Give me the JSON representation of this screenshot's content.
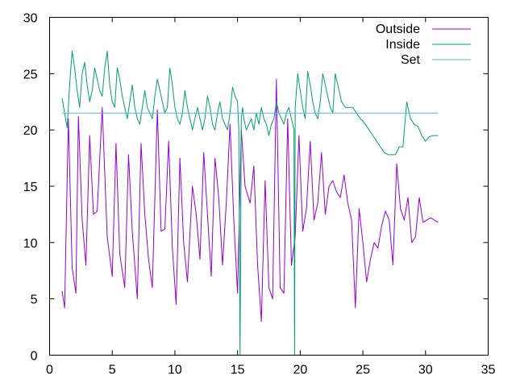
{
  "chart_data": {
    "type": "line",
    "title": "",
    "xlabel": "",
    "ylabel": "",
    "xlim": [
      0,
      35
    ],
    "ylim": [
      0,
      30
    ],
    "xticks": [
      0,
      5,
      10,
      15,
      20,
      25,
      30,
      35
    ],
    "yticks": [
      0,
      5,
      10,
      15,
      20,
      25,
      30
    ],
    "grid": false,
    "legend_position": "top-right",
    "series": [
      {
        "name": "Outside",
        "color": "#9400d3",
        "x": [
          1.0,
          1.2,
          1.5,
          1.8,
          2.1,
          2.3,
          2.6,
          2.9,
          3.2,
          3.5,
          3.8,
          4.2,
          4.6,
          5.0,
          5.3,
          5.6,
          6.0,
          6.3,
          6.6,
          7.0,
          7.3,
          7.6,
          7.9,
          8.2,
          8.6,
          8.9,
          9.2,
          9.5,
          9.8,
          10.1,
          10.4,
          10.7,
          11.0,
          11.4,
          11.7,
          12.0,
          12.3,
          12.6,
          12.9,
          13.2,
          13.5,
          13.8,
          14.1,
          14.4,
          14.7,
          15.0,
          15.3,
          15.6,
          16.0,
          16.3,
          16.6,
          16.9,
          17.2,
          17.5,
          17.8,
          18.1,
          18.4,
          18.7,
          19.0,
          19.3,
          19.6,
          19.9,
          20.2,
          20.5,
          20.8,
          21.1,
          21.4,
          21.7,
          22.0,
          22.3,
          22.6,
          22.9,
          23.2,
          23.5,
          23.8,
          24.1,
          24.4,
          24.7,
          25.0,
          25.3,
          25.6,
          25.9,
          26.2,
          26.5,
          26.8,
          27.1,
          27.4,
          27.7,
          28.0,
          28.3,
          28.6,
          28.9,
          29.2,
          29.5,
          29.8,
          30.1,
          30.4,
          30.7,
          31.0
        ],
        "y": [
          5.7,
          4.2,
          21.0,
          7.8,
          5.5,
          21.2,
          12.0,
          8.0,
          19.5,
          12.5,
          12.8,
          22.0,
          10.5,
          7.0,
          18.8,
          9.0,
          6.0,
          17.8,
          11.0,
          5.0,
          18.8,
          12.5,
          8.5,
          6.0,
          21.8,
          11.0,
          11.2,
          19.0,
          9.5,
          4.5,
          17.5,
          10.0,
          6.5,
          15.0,
          12.5,
          8.5,
          18.0,
          12.5,
          7.0,
          17.5,
          14.0,
          8.0,
          13.5,
          20.5,
          12.0,
          5.5,
          20.0,
          15.0,
          13.5,
          16.8,
          8.0,
          3.0,
          15.5,
          6.0,
          5.0,
          24.5,
          6.0,
          5.5,
          21.0,
          8.0,
          10.5,
          19.5,
          11.0,
          13.0,
          19.0,
          12.0,
          13.5,
          18.0,
          12.5,
          15.0,
          15.5,
          14.5,
          14.0,
          16.0,
          13.5,
          12.0,
          4.2,
          13.0,
          10.0,
          6.5,
          8.5,
          10.0,
          9.5,
          11.5,
          12.8,
          12.0,
          8.0,
          17.0,
          13.0,
          12.0,
          14.0,
          10.0,
          10.5,
          14.0,
          11.8,
          12.0,
          12.2,
          12.0,
          11.8
        ]
      },
      {
        "name": "Inside",
        "color": "#009e73",
        "x": [
          1.0,
          1.2,
          1.4,
          1.6,
          1.8,
          2.0,
          2.2,
          2.4,
          2.6,
          2.8,
          3.0,
          3.2,
          3.4,
          3.6,
          3.8,
          4.0,
          4.2,
          4.4,
          4.6,
          4.8,
          5.0,
          5.2,
          5.4,
          5.6,
          5.8,
          6.0,
          6.2,
          6.4,
          6.6,
          6.8,
          7.0,
          7.2,
          7.4,
          7.6,
          7.8,
          8.0,
          8.2,
          8.4,
          8.6,
          8.8,
          9.0,
          9.2,
          9.4,
          9.6,
          9.8,
          10.0,
          10.2,
          10.4,
          10.6,
          10.8,
          11.0,
          11.2,
          11.4,
          11.6,
          11.8,
          12.0,
          12.2,
          12.4,
          12.6,
          12.8,
          13.0,
          13.2,
          13.4,
          13.6,
          13.8,
          14.0,
          14.2,
          14.4,
          14.6,
          14.8,
          15.0,
          15.1,
          15.2,
          15.3,
          15.4,
          15.5,
          15.7,
          15.9,
          16.1,
          16.3,
          16.5,
          16.7,
          16.9,
          17.1,
          17.3,
          17.5,
          17.7,
          17.9,
          18.1,
          18.3,
          18.5,
          18.7,
          18.9,
          19.1,
          19.3,
          19.5,
          19.55,
          19.6,
          19.8,
          20.0,
          20.2,
          20.4,
          20.6,
          20.8,
          21.0,
          21.2,
          21.4,
          21.6,
          21.8,
          22.0,
          22.2,
          22.4,
          22.6,
          22.8,
          23.0,
          23.3,
          23.6,
          23.9,
          24.2,
          24.5,
          24.8,
          25.0,
          25.2,
          25.5,
          25.8,
          26.1,
          26.4,
          26.7,
          27.0,
          27.3,
          27.6,
          27.9,
          28.2,
          28.5,
          28.8,
          29.1,
          29.4,
          29.7,
          30.0,
          30.3,
          30.6,
          31.0
        ],
        "y": [
          22.8,
          21.5,
          20.2,
          24.0,
          27.0,
          25.5,
          23.5,
          22.0,
          25.0,
          26.0,
          24.0,
          22.5,
          23.5,
          25.5,
          24.5,
          23.5,
          23.0,
          25.5,
          27.0,
          24.0,
          22.5,
          22.0,
          25.5,
          24.5,
          23.0,
          22.0,
          21.0,
          22.5,
          24.0,
          22.0,
          21.0,
          20.5,
          22.0,
          23.5,
          22.0,
          21.5,
          21.0,
          23.0,
          24.5,
          23.5,
          22.5,
          21.5,
          22.0,
          25.5,
          24.0,
          22.0,
          21.0,
          20.5,
          21.5,
          23.5,
          22.0,
          21.0,
          20.0,
          21.0,
          22.0,
          21.0,
          20.0,
          21.0,
          23.0,
          22.0,
          20.5,
          20.0,
          21.5,
          22.5,
          21.0,
          20.5,
          20.0,
          21.5,
          23.8,
          23.0,
          22.5,
          20.0,
          0.0,
          21.0,
          22.0,
          21.0,
          20.0,
          20.5,
          21.0,
          20.0,
          21.5,
          20.5,
          22.0,
          21.0,
          20.5,
          19.5,
          20.5,
          21.0,
          22.5,
          21.5,
          21.0,
          20.5,
          21.5,
          22.0,
          21.0,
          20.0,
          0.0,
          22.0,
          25.0,
          23.5,
          22.0,
          21.0,
          25.2,
          24.0,
          22.5,
          21.5,
          21.0,
          22.5,
          25.0,
          24.0,
          23.0,
          22.0,
          21.5,
          25.0,
          24.0,
          22.5,
          22.0,
          22.0,
          22.0,
          21.5,
          21.0,
          20.8,
          20.5,
          20.0,
          19.5,
          19.0,
          18.5,
          18.0,
          17.8,
          17.8,
          17.8,
          18.5,
          18.5,
          22.5,
          21.0,
          20.5,
          20.3,
          19.5,
          19.0,
          19.4,
          19.5,
          19.5
        ]
      },
      {
        "name": "Set",
        "color": "#56b4e9",
        "x": [
          1.0,
          31.0
        ],
        "y": [
          21.5,
          21.5
        ]
      }
    ]
  }
}
